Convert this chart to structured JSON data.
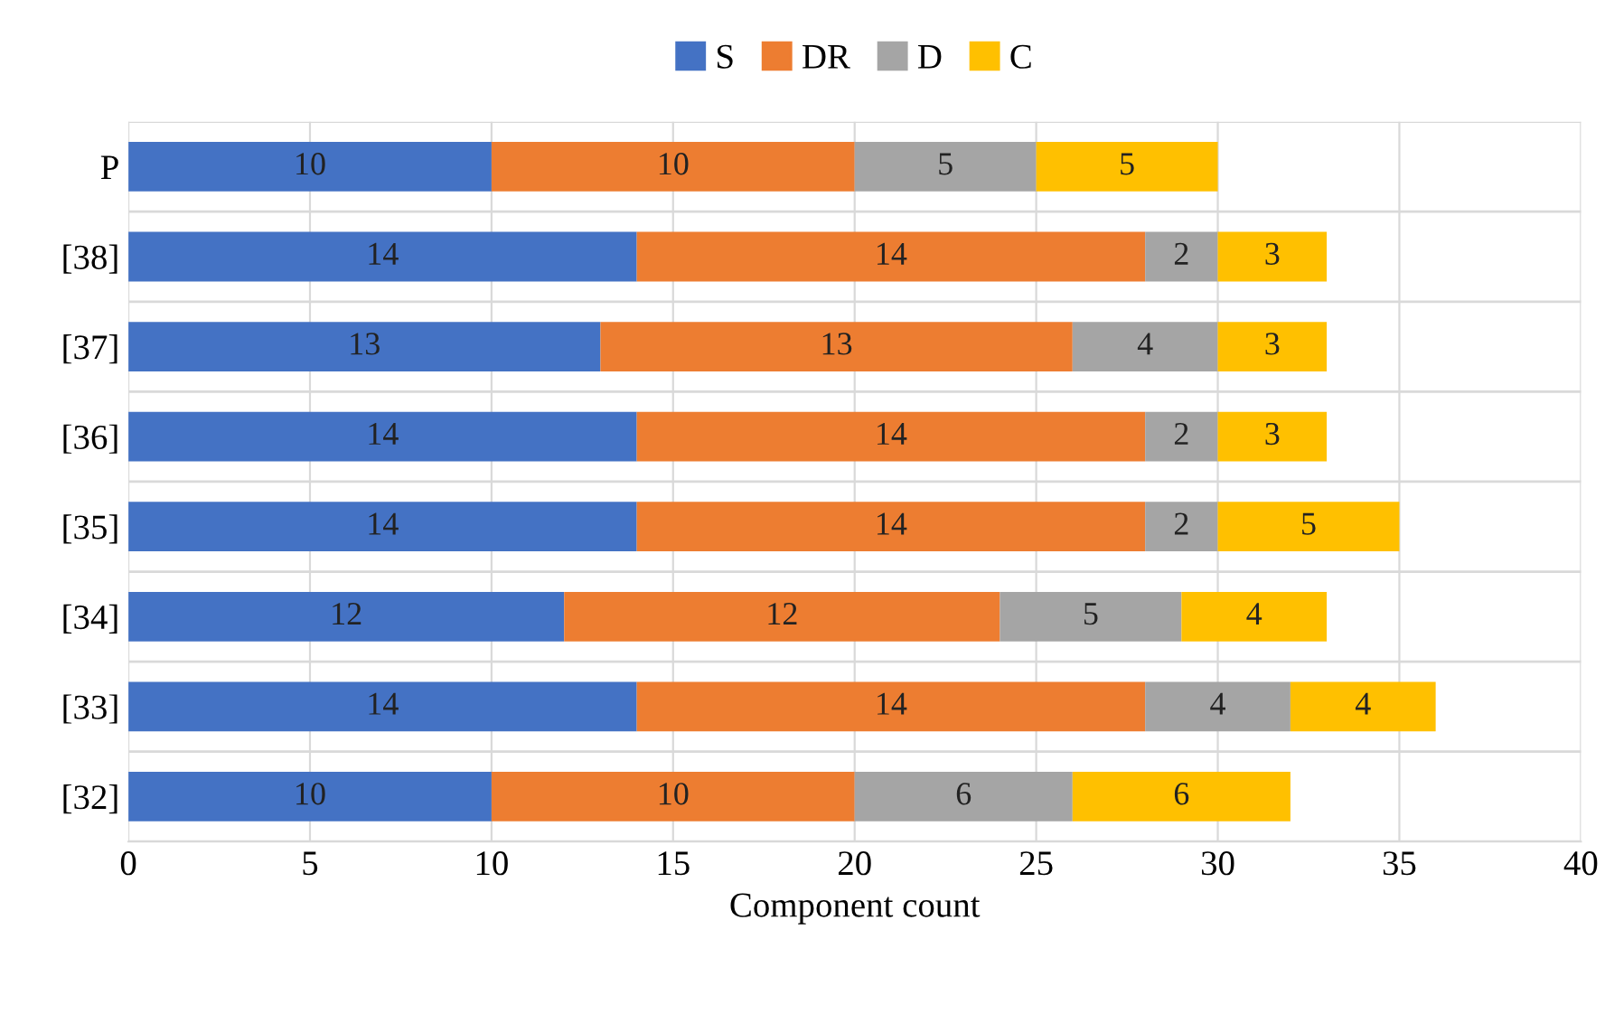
{
  "chart_data": {
    "type": "bar",
    "orientation": "horizontal",
    "stacked": true,
    "xlabel": "Component count",
    "categories": [
      "P",
      "[38]",
      "[37]",
      "[36]",
      "[35]",
      "[34]",
      "[33]",
      "[32]"
    ],
    "series": [
      {
        "name": "S",
        "color": "#4472c4",
        "values": [
          10,
          14,
          13,
          14,
          14,
          12,
          14,
          10
        ]
      },
      {
        "name": "DR",
        "color": "#ed7d31",
        "values": [
          10,
          14,
          13,
          14,
          14,
          12,
          14,
          10
        ]
      },
      {
        "name": "D",
        "color": "#a5a5a5",
        "values": [
          5,
          2,
          4,
          2,
          2,
          5,
          4,
          6
        ]
      },
      {
        "name": "C",
        "color": "#ffc000",
        "values": [
          5,
          3,
          3,
          3,
          5,
          4,
          4,
          6
        ]
      }
    ],
    "xlim": [
      0,
      40
    ],
    "xticks": [
      0,
      5,
      10,
      15,
      20,
      25,
      30,
      35,
      40
    ],
    "grid": "x",
    "legend": "top",
    "data_labels": true
  }
}
